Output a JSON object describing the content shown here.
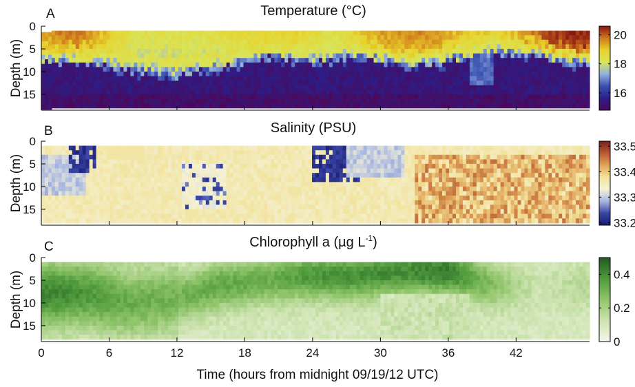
{
  "figure": {
    "x_axis_label": "Time (hours from midnight 09/19/12 UTC)",
    "x_ticks": [
      0,
      6,
      12,
      18,
      24,
      30,
      36,
      42
    ],
    "x_range": [
      0,
      48.5
    ]
  },
  "chart_data": [
    {
      "type": "heatmap",
      "panel": "A",
      "title": "Temperature (°C)",
      "ylabel": "Depth (m)",
      "xlabel": "Time (hours from midnight 09/19/12 UTC)",
      "y_ticks": [
        0,
        5,
        10,
        15
      ],
      "ylim": [
        18.5,
        0
      ],
      "xlim": [
        0,
        48.5
      ],
      "colorbar": {
        "ticks": [
          16,
          18,
          20
        ],
        "range": [
          14.8,
          20.6
        ],
        "colors": [
          "#4a0a5c",
          "#2b1f8a",
          "#3c4fb0",
          "#8fb0e0",
          "#d8e45a",
          "#e8d22a",
          "#d07a1c",
          "#8a1414"
        ]
      },
      "description_values": {
        "surface_temperature": [
          19.5,
          20.0,
          18.5,
          18.5,
          18.8,
          19.0,
          18.5,
          19.5,
          19.8,
          19.0,
          19.2,
          20.4,
          20.6
        ],
        "surface_hours": [
          0,
          3,
          8,
          14,
          18,
          22,
          26,
          30,
          34,
          38,
          42,
          45,
          48.5
        ],
        "deep_temperature": 15.3,
        "thermocline_depth_m": [
          7,
          7,
          9,
          10,
          8,
          6,
          7,
          6,
          8,
          7,
          5,
          6,
          8
        ],
        "thermocline_hours": [
          0,
          4,
          8,
          12,
          16,
          20,
          24,
          28,
          32,
          36,
          40,
          44,
          48.5
        ]
      }
    },
    {
      "type": "heatmap",
      "panel": "B",
      "title": "Salinity (PSU)",
      "ylabel": "Depth (m)",
      "y_ticks": [
        0,
        5,
        10,
        15
      ],
      "ylim": [
        18.5,
        0
      ],
      "xlim": [
        0,
        48.5
      ],
      "colorbar": {
        "ticks": [
          33.2,
          33.3,
          33.4,
          33.5
        ],
        "range": [
          33.19,
          33.52
        ],
        "colors": [
          "#1a1a6e",
          "#3a46a6",
          "#a9b7e0",
          "#f4f2d8",
          "#f2e29a",
          "#e0a45a",
          "#b85a30",
          "#7a1e1e"
        ]
      },
      "description_values": {
        "background_salinity": 33.36,
        "low_salinity_events": [
          {
            "hours": [
              2.5,
              5.0
            ],
            "depth_m": [
              0.5,
              7
            ],
            "salinity": 33.2
          },
          {
            "hours": [
              23.8,
              28.5
            ],
            "depth_m": [
              0.5,
              9
            ],
            "salinity": 33.2
          },
          {
            "hours": [
              12.5,
              16.5
            ],
            "depth_m": [
              5,
              15
            ],
            "salinity": 33.22
          }
        ],
        "high_salinity_after_hour": 33,
        "high_salinity_value": 33.43
      }
    },
    {
      "type": "heatmap",
      "panel": "C",
      "title": "Chlorophyll a (µg L",
      "title_superscript": "-1",
      "title_suffix": ")",
      "ylabel": "Depth (m)",
      "y_ticks": [
        0,
        5,
        10,
        15
      ],
      "ylim": [
        18.5,
        0
      ],
      "xlim": [
        0,
        48.5
      ],
      "colorbar": {
        "ticks": [
          0,
          0.2,
          0.4
        ],
        "range": [
          0,
          0.5
        ],
        "colors": [
          "#f4f6ea",
          "#cde3b0",
          "#8fc46a",
          "#4f9a3c",
          "#1e5a24"
        ]
      },
      "description_values": {
        "max_chlorophyll_depth_m": [
          8,
          8,
          10,
          9,
          6,
          5,
          4,
          4,
          3,
          3,
          6,
          7,
          6
        ],
        "max_chlorophyll_hours": [
          0,
          4,
          8,
          12,
          16,
          20,
          24,
          28,
          32,
          36,
          40,
          44,
          48.5
        ],
        "max_chlorophyll_value": [
          0.42,
          0.38,
          0.32,
          0.3,
          0.34,
          0.32,
          0.38,
          0.4,
          0.4,
          0.44,
          0.26,
          0.12,
          0.18
        ],
        "background_value": 0.1
      }
    }
  ]
}
